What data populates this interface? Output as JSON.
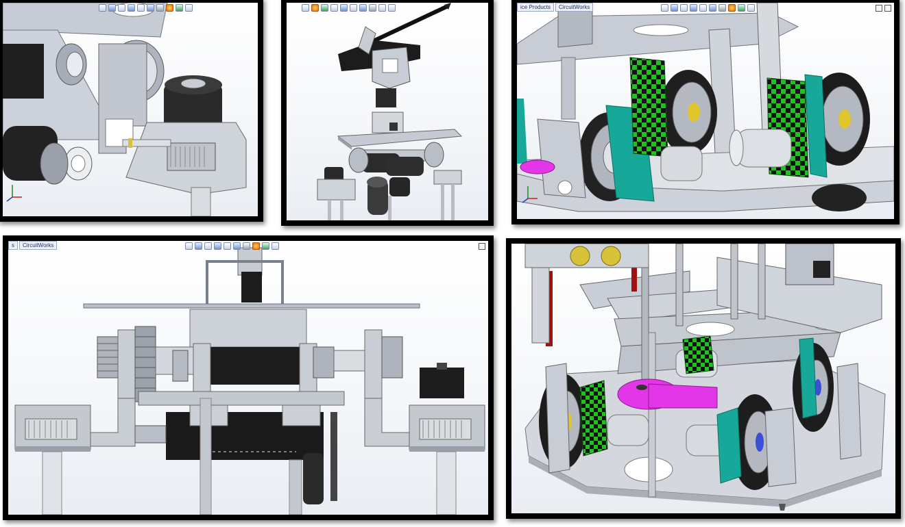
{
  "panels": {
    "p1": {
      "tabs": []
    },
    "p2": {
      "tabs": []
    },
    "p3": {
      "tabs": [
        "ice Products",
        "CircuitWorks"
      ]
    },
    "p4": {
      "tabs": [
        "s",
        "CircuitWorks"
      ]
    },
    "p5": {
      "tabs": []
    }
  },
  "toolbar_icons": [
    "zoom-to-fit-icon",
    "zoom-area-icon",
    "previous-view-icon",
    "section-view-icon",
    "view-orientation-icon",
    "display-style-icon",
    "hide-show-icon",
    "edit-appearance-icon",
    "apply-scene-icon",
    "view-settings-icon"
  ],
  "colors": {
    "frame": "#000000",
    "metal": "#b9bfca",
    "dark_part": "#1b1b1b",
    "checker_green": "#1fc21f",
    "teal": "#17a89a",
    "magenta": "#e236e8",
    "red_plate": "#a01010"
  }
}
